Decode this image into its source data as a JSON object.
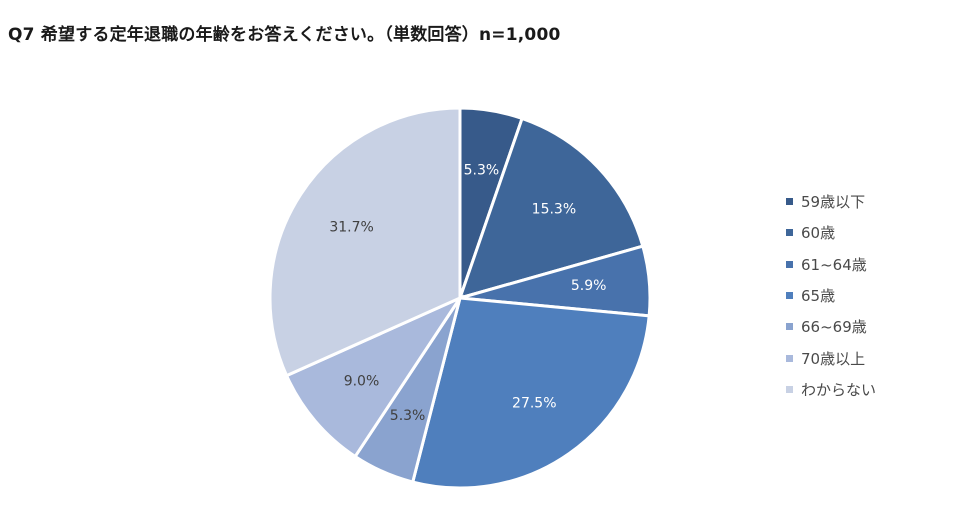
{
  "title": "Q7 希望する定年退職の年齢をお答えください。（単数回答）n=1,000",
  "chart_data": {
    "type": "pie",
    "title": "Q7 希望する定年退職の年齢をお答えください。（単数回答）n=1,000",
    "start": "12 o'clock",
    "direction": "clockwise",
    "legend_position": "right",
    "slices": [
      {
        "label": "59歳以下",
        "value": 5.3,
        "value_label": "5.3%",
        "color": "#375a8a"
      },
      {
        "label": "60歳",
        "value": 15.3,
        "value_label": "15.3%",
        "color": "#3e6699"
      },
      {
        "label": "61~64歳",
        "value": 5.9,
        "value_label": "5.9%",
        "color": "#4872ac"
      },
      {
        "label": "65歳",
        "value": 27.5,
        "value_label": "27.5%",
        "color": "#4f7fbd"
      },
      {
        "label": "66~69歳",
        "value": 5.3,
        "value_label": "5.3%",
        "color": "#8aa3cf"
      },
      {
        "label": "70歳以上",
        "value": 9.0,
        "value_label": "9.0%",
        "color": "#a9b9dc"
      },
      {
        "label": "わからない",
        "value": 31.7,
        "value_label": "31.7%",
        "color": "#c8d1e4"
      }
    ]
  }
}
